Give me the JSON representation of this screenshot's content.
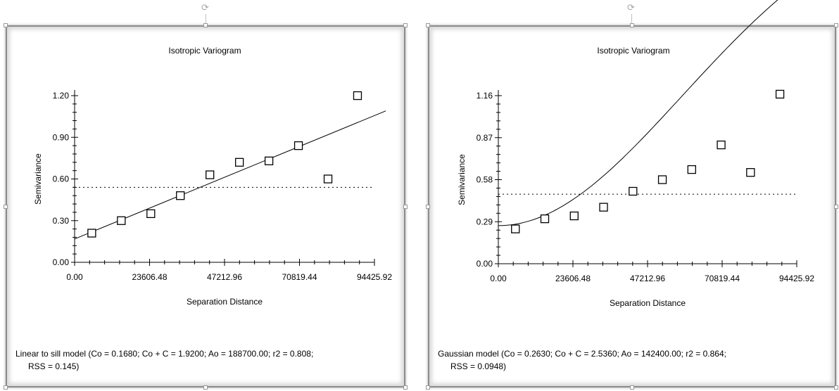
{
  "chart_data": [
    {
      "type": "scatter",
      "title": "Isotropic Variogram",
      "xlabel": "Separation Distance",
      "ylabel": "Semivariance",
      "xlim": [
        0,
        94425.92
      ],
      "ylim": [
        0,
        1.2
      ],
      "x_ticks": [
        "0.00",
        "23606.48",
        "47212.96",
        "70819.44",
        "94425.92"
      ],
      "y_ticks": [
        "0.00",
        "0.30",
        "0.60",
        "0.90",
        "1.20"
      ],
      "x_tick_values": [
        0,
        23606.48,
        47212.96,
        70819.44,
        94425.92
      ],
      "y_tick_values": [
        0,
        0.3,
        0.6,
        0.9,
        1.2
      ],
      "points": [
        {
          "x": 5400,
          "y": 0.21
        },
        {
          "x": 14700,
          "y": 0.3
        },
        {
          "x": 24000,
          "y": 0.35
        },
        {
          "x": 33300,
          "y": 0.48
        },
        {
          "x": 42600,
          "y": 0.63
        },
        {
          "x": 51900,
          "y": 0.72
        },
        {
          "x": 61200,
          "y": 0.73
        },
        {
          "x": 70500,
          "y": 0.84
        },
        {
          "x": 79800,
          "y": 0.6
        },
        {
          "x": 89100,
          "y": 1.2
        }
      ],
      "model_line": [
        {
          "x": 0,
          "y": 0.168
        },
        {
          "x": 98000,
          "y": 1.09
        }
      ],
      "sill_line_y": 0.54,
      "model_text_1": "Linear to sill model (Co = 0.1680; Co + C = 1.9200; Ao = 188700.00; r2 = 0.808;",
      "model_text_2": "RSS = 0.145)"
    },
    {
      "type": "scatter",
      "title": "Isotropic Variogram",
      "xlabel": "Separation Distance",
      "ylabel": "Semivariance",
      "xlim": [
        0,
        94425.92
      ],
      "ylim": [
        0,
        1.16
      ],
      "x_ticks": [
        "0.00",
        "23606.48",
        "47212.96",
        "70819.44",
        "94425.92"
      ],
      "y_ticks": [
        "0.00",
        "0.29",
        "0.58",
        "0.87",
        "1.16"
      ],
      "x_tick_values": [
        0,
        23606.48,
        47212.96,
        70819.44,
        94425.92
      ],
      "y_tick_values": [
        0,
        0.29,
        0.58,
        0.87,
        1.16
      ],
      "points": [
        {
          "x": 5400,
          "y": 0.24
        },
        {
          "x": 14700,
          "y": 0.31
        },
        {
          "x": 24000,
          "y": 0.33
        },
        {
          "x": 33300,
          "y": 0.39
        },
        {
          "x": 42600,
          "y": 0.5
        },
        {
          "x": 51900,
          "y": 0.58
        },
        {
          "x": 61200,
          "y": 0.65
        },
        {
          "x": 70500,
          "y": 0.82
        },
        {
          "x": 79800,
          "y": 0.63
        },
        {
          "x": 89100,
          "y": 1.17
        }
      ],
      "model": {
        "nugget": 0.263,
        "sill": 2.536,
        "range": 142400,
        "x_max": 98000
      },
      "sill_line_y": 0.48,
      "model_text_1": "Gaussian model (Co = 0.2630; Co + C = 2.5360; Ao = 142400.00; r2 = 0.864;",
      "model_text_2": "RSS = 0.0948)"
    }
  ]
}
